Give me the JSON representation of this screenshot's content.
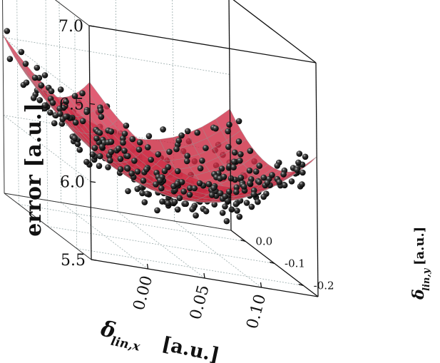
{
  "chart_data": {
    "type": "scatter",
    "subtype": "3d-surface-with-scatter",
    "zlabel": "error [a.u.]",
    "xlabel_main": "δ",
    "xlabel_sub": "lin,x",
    "xlabel_unit": "[a.u.]",
    "ylabel_main": "δ",
    "ylabel_sub": "lin,y",
    "ylabel_unit": "[a.u.]",
    "xlim": [
      -0.05,
      0.15
    ],
    "ylim": [
      -0.25,
      0.05
    ],
    "zlim": [
      5.5,
      7.0
    ],
    "z_ticks": [
      "5.5",
      "6.0",
      "6.5",
      "7.0"
    ],
    "x_ticks": [
      "0.00",
      "0.05",
      "0.10"
    ],
    "y_ticks": [
      "0.0",
      "-0.1",
      "-0.2"
    ],
    "grid": true,
    "surface": {
      "model": "paraboloid",
      "z_min": 5.82,
      "x_center": 0.065,
      "y_center": -0.08,
      "x_curvature": 40,
      "y_curvature": 10,
      "color": "#e0405f"
    },
    "points": {
      "count": 380,
      "color": "#111111",
      "z_range": [
        5.75,
        6.95
      ]
    }
  }
}
